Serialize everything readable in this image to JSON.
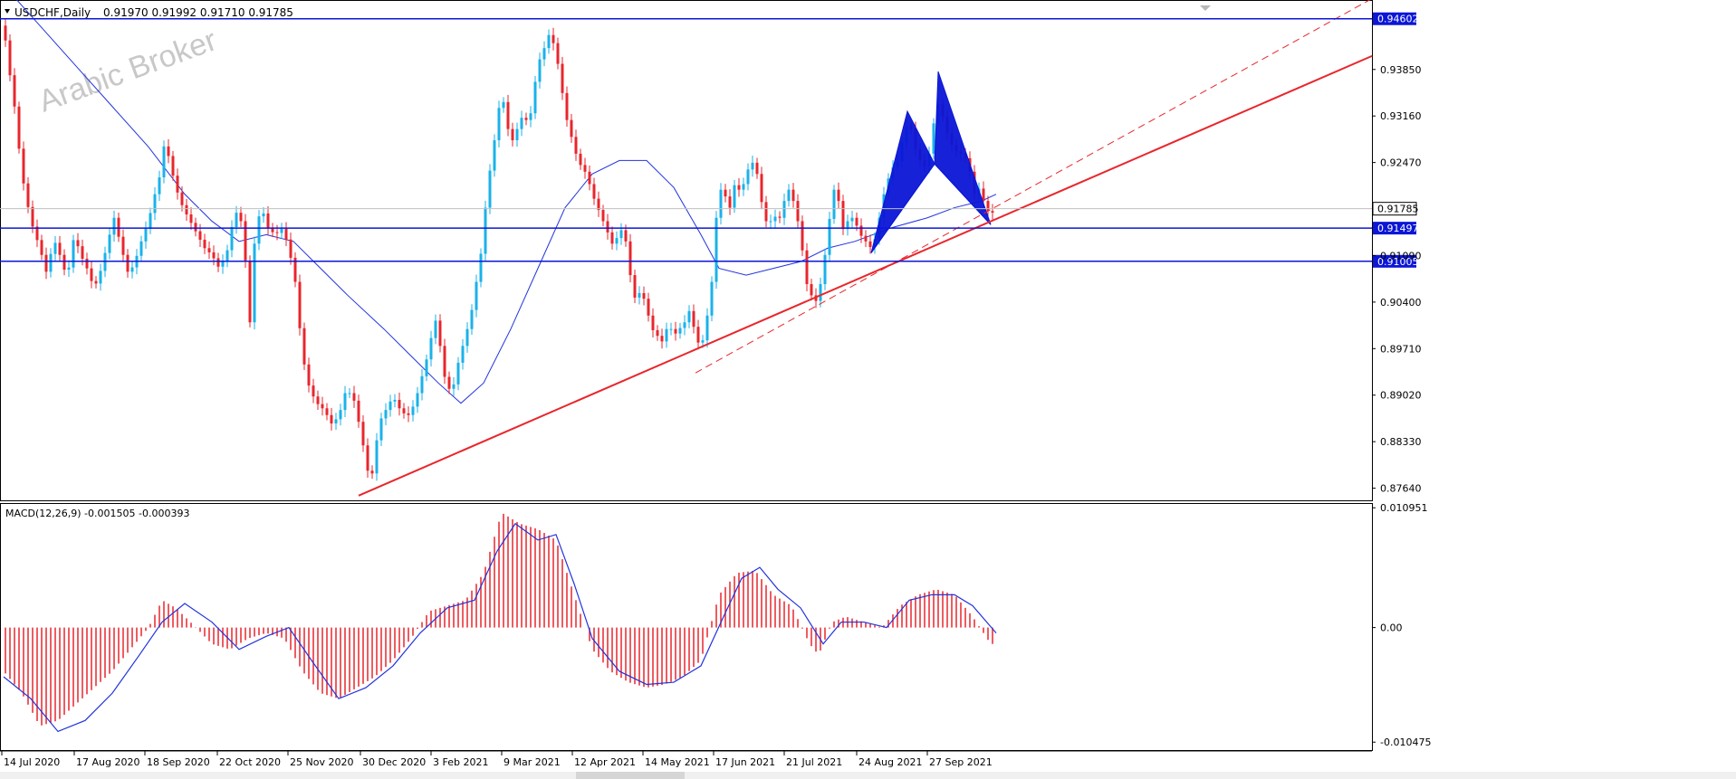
{
  "header": {
    "symbol": "USDCHF,Daily",
    "ohlc": "0.91970 0.91992 0.91710 0.91785"
  },
  "watermark": "Arabic Broker",
  "macd_header": {
    "label": "MACD(12,26,9) -0.001505 -0.000393"
  },
  "colors": {
    "bull": "#1ab2ea",
    "bear": "#e8262c",
    "level_line": "#0b16d6",
    "ma_line": "#2233dd",
    "trend_line": "#e8262c",
    "macd_hist": "#e8262c",
    "macd_signal": "#2233dd",
    "harmonic_fill": "#0b16d6",
    "axis": "#000000",
    "price_tag": "#ffffff"
  },
  "chart_data": [
    {
      "type": "candlestick",
      "pair": "USDCHF",
      "timeframe": "Daily",
      "y_ticks": [
        "0.93850",
        "0.93160",
        "0.92470",
        "0.91090",
        "0.90400",
        "0.89710",
        "0.89020",
        "0.88330",
        "0.87640"
      ],
      "y_range": [
        0.8746,
        0.9488
      ],
      "x_ticks": [
        "14 Jul 2020",
        "17 Aug 2020",
        "18 Sep 2020",
        "22 Oct 2020",
        "25 Nov 2020",
        "30 Dec 2020",
        "3 Feb 2021",
        "9 Mar 2021",
        "12 Apr 2021",
        "14 May 2021",
        "17 Jun 2021",
        "21 Jul 2021",
        "24 Aug 2021",
        "27 Sep 2021"
      ],
      "horizontal_levels": [
        {
          "value": 0.94602,
          "label": "0.94602"
        },
        {
          "value": 0.91497,
          "label": "0.91497"
        },
        {
          "value": 0.91005,
          "label": "0.91005"
        }
      ],
      "last_price": {
        "value": 0.91785,
        "label": "0.91785"
      },
      "price_path": [
        [
          0,
          0.945
        ],
        [
          5,
          0.9395
        ],
        [
          12,
          0.933
        ],
        [
          20,
          0.923
        ],
        [
          30,
          0.916
        ],
        [
          40,
          0.912
        ],
        [
          48,
          0.908
        ],
        [
          55,
          0.9135
        ],
        [
          62,
          0.911
        ],
        [
          70,
          0.9075
        ],
        [
          78,
          0.914
        ],
        [
          85,
          0.911
        ],
        [
          92,
          0.909
        ],
        [
          100,
          0.906
        ],
        [
          108,
          0.909
        ],
        [
          115,
          0.913
        ],
        [
          122,
          0.9165
        ],
        [
          130,
          0.912
        ],
        [
          138,
          0.908
        ],
        [
          145,
          0.91
        ],
        [
          152,
          0.913
        ],
        [
          160,
          0.916
        ],
        [
          165,
          0.919
        ],
        [
          172,
          0.9225
        ],
        [
          178,
          0.928
        ],
        [
          184,
          0.9245
        ],
        [
          190,
          0.921
        ],
        [
          198,
          0.918
        ],
        [
          206,
          0.916
        ],
        [
          214,
          0.914
        ],
        [
          222,
          0.912
        ],
        [
          230,
          0.911
        ],
        [
          238,
          0.909
        ],
        [
          246,
          0.911
        ],
        [
          254,
          0.9165
        ],
        [
          260,
          0.918
        ],
        [
          266,
          0.912
        ],
        [
          272,
          0.901
        ],
        [
          278,
          0.915
        ],
        [
          285,
          0.918
        ],
        [
          292,
          0.915
        ],
        [
          300,
          0.914
        ],
        [
          308,
          0.915
        ],
        [
          315,
          0.912
        ],
        [
          322,
          0.907
        ],
        [
          330,
          0.896
        ],
        [
          338,
          0.891
        ],
        [
          346,
          0.889
        ],
        [
          354,
          0.888
        ],
        [
          362,
          0.886
        ],
        [
          370,
          0.887
        ],
        [
          378,
          0.891
        ],
        [
          386,
          0.89
        ],
        [
          394,
          0.885
        ],
        [
          402,
          0.879
        ],
        [
          408,
          0.8785
        ],
        [
          414,
          0.886
        ],
        [
          422,
          0.888
        ],
        [
          430,
          0.89
        ],
        [
          438,
          0.888
        ],
        [
          446,
          0.887
        ],
        [
          454,
          0.889
        ],
        [
          462,
          0.893
        ],
        [
          470,
          0.897
        ],
        [
          476,
          0.902
        ],
        [
          482,
          0.8975
        ],
        [
          488,
          0.892
        ],
        [
          495,
          0.8905
        ],
        [
          502,
          0.895
        ],
        [
          510,
          0.899
        ],
        [
          516,
          0.902
        ],
        [
          522,
          0.907
        ],
        [
          528,
          0.912
        ],
        [
          534,
          0.921
        ],
        [
          540,
          0.926
        ],
        [
          545,
          0.931
        ],
        [
          550,
          0.9355
        ],
        [
          556,
          0.93
        ],
        [
          562,
          0.928
        ],
        [
          568,
          0.93
        ],
        [
          574,
          0.932
        ],
        [
          580,
          0.93
        ],
        [
          586,
          0.936
        ],
        [
          592,
          0.94
        ],
        [
          598,
          0.942
        ],
        [
          603,
          0.944
        ],
        [
          608,
          0.942
        ],
        [
          614,
          0.938
        ],
        [
          620,
          0.932
        ],
        [
          626,
          0.929
        ],
        [
          632,
          0.926
        ],
        [
          638,
          0.924
        ],
        [
          644,
          0.923
        ],
        [
          650,
          0.92
        ],
        [
          656,
          0.918
        ],
        [
          662,
          0.916
        ],
        [
          668,
          0.914
        ],
        [
          674,
          0.912
        ],
        [
          680,
          0.915
        ],
        [
          686,
          0.914
        ],
        [
          692,
          0.908
        ],
        [
          698,
          0.904
        ],
        [
          704,
          0.906
        ],
        [
          710,
          0.903
        ],
        [
          716,
          0.9
        ],
        [
          722,
          0.899
        ],
        [
          728,
          0.898
        ],
        [
          734,
          0.901
        ],
        [
          740,
          0.899
        ],
        [
          746,
          0.9
        ],
        [
          752,
          0.901
        ],
        [
          758,
          0.903
        ],
        [
          764,
          0.899
        ],
        [
          770,
          0.897
        ],
        [
          776,
          0.901
        ],
        [
          782,
          0.907
        ],
        [
          786,
          0.915
        ],
        [
          790,
          0.921
        ],
        [
          796,
          0.92
        ],
        [
          802,
          0.918
        ],
        [
          808,
          0.922
        ],
        [
          814,
          0.92
        ],
        [
          820,
          0.923
        ],
        [
          826,
          0.925
        ],
        [
          832,
          0.923
        ],
        [
          838,
          0.918
        ],
        [
          844,
          0.915
        ],
        [
          850,
          0.917
        ],
        [
          856,
          0.916
        ],
        [
          862,
          0.919
        ],
        [
          868,
          0.921
        ],
        [
          874,
          0.918
        ],
        [
          880,
          0.914
        ],
        [
          886,
          0.907
        ],
        [
          892,
          0.905
        ],
        [
          898,
          0.904
        ],
        [
          904,
          0.908
        ],
        [
          910,
          0.914
        ],
        [
          916,
          0.921
        ],
        [
          922,
          0.919
        ],
        [
          928,
          0.914
        ],
        [
          934,
          0.917
        ],
        [
          940,
          0.916
        ],
        [
          946,
          0.914
        ],
        [
          952,
          0.913
        ],
        [
          958,
          0.912
        ],
        [
          964,
          0.914
        ],
        [
          970,
          0.919
        ],
        [
          976,
          0.922
        ],
        [
          982,
          0.924
        ],
        [
          988,
          0.925
        ],
        [
          994,
          0.929
        ],
        [
          1000,
          0.931
        ],
        [
          1006,
          0.927
        ],
        [
          1012,
          0.925
        ],
        [
          1018,
          0.924
        ],
        [
          1024,
          0.927
        ],
        [
          1030,
          0.934
        ],
        [
          1036,
          0.932
        ],
        [
          1042,
          0.929
        ],
        [
          1048,
          0.927
        ],
        [
          1054,
          0.926
        ],
        [
          1060,
          0.926
        ],
        [
          1066,
          0.924
        ],
        [
          1072,
          0.92
        ],
        [
          1078,
          0.921
        ],
        [
          1084,
          0.918
        ],
        [
          1090,
          0.917
        ],
        [
          1096,
          0.9178
        ]
      ],
      "moving_average": [
        [
          0,
          0.951
        ],
        [
          40,
          0.945
        ],
        [
          80,
          0.939
        ],
        [
          120,
          0.933
        ],
        [
          160,
          0.927
        ],
        [
          200,
          0.92
        ],
        [
          230,
          0.916
        ],
        [
          260,
          0.913
        ],
        [
          290,
          0.914
        ],
        [
          320,
          0.913
        ],
        [
          350,
          0.909
        ],
        [
          380,
          0.905
        ],
        [
          420,
          0.9
        ],
        [
          450,
          0.896
        ],
        [
          480,
          0.892
        ],
        [
          505,
          0.889
        ],
        [
          530,
          0.892
        ],
        [
          560,
          0.9
        ],
        [
          590,
          0.909
        ],
        [
          620,
          0.918
        ],
        [
          650,
          0.923
        ],
        [
          680,
          0.925
        ],
        [
          710,
          0.925
        ],
        [
          740,
          0.921
        ],
        [
          770,
          0.914
        ],
        [
          790,
          0.909
        ],
        [
          820,
          0.908
        ],
        [
          850,
          0.909
        ],
        [
          880,
          0.91
        ],
        [
          910,
          0.912
        ],
        [
          940,
          0.913
        ],
        [
          980,
          0.915
        ],
        [
          1020,
          0.9165
        ],
        [
          1050,
          0.918
        ],
        [
          1080,
          0.919
        ],
        [
          1096,
          0.92
        ]
      ],
      "trend_lines": [
        {
          "style": "solid",
          "from": [
            396,
            0.8753
          ],
          "to": [
            1515,
            0.9405
          ]
        },
        {
          "style": "dashed",
          "from": [
            768,
            0.8935
          ],
          "to": [
            1515,
            0.949
          ]
        }
      ],
      "harmonic_pattern": {
        "X": [
          958,
          0.9113
        ],
        "A": [
          998,
          0.9323
        ],
        "B": [
          1028,
          0.9245
        ],
        "C": [
          1032,
          0.9382
        ],
        "D": [
          1090,
          0.9155
        ]
      }
    },
    {
      "type": "bar",
      "indicator": "MACD(12,26,9)",
      "main": -0.001505,
      "signal": -0.000393,
      "y_ticks": [
        "0.010951",
        "0.00",
        "-0.010475"
      ],
      "y_range": [
        -0.0112,
        0.0113
      ],
      "histogram": [
        [
          0,
          -0.004
        ],
        [
          20,
          -0.006
        ],
        [
          40,
          -0.009
        ],
        [
          60,
          -0.0085
        ],
        [
          80,
          -0.007
        ],
        [
          100,
          -0.0055
        ],
        [
          120,
          -0.004
        ],
        [
          140,
          -0.002
        ],
        [
          160,
          0.0
        ],
        [
          175,
          0.0025
        ],
        [
          190,
          0.0018
        ],
        [
          210,
          0.0002
        ],
        [
          230,
          -0.0015
        ],
        [
          250,
          -0.002
        ],
        [
          270,
          -0.001
        ],
        [
          290,
          -0.0005
        ],
        [
          310,
          -0.001
        ],
        [
          330,
          -0.004
        ],
        [
          350,
          -0.006
        ],
        [
          370,
          -0.0065
        ],
        [
          390,
          -0.0055
        ],
        [
          410,
          -0.0045
        ],
        [
          430,
          -0.003
        ],
        [
          450,
          -0.001
        ],
        [
          470,
          0.0015
        ],
        [
          490,
          0.002
        ],
        [
          510,
          0.0025
        ],
        [
          530,
          0.005
        ],
        [
          550,
          0.0105
        ],
        [
          570,
          0.0095
        ],
        [
          590,
          0.009
        ],
        [
          610,
          0.008
        ],
        [
          630,
          0.003
        ],
        [
          650,
          -0.002
        ],
        [
          670,
          -0.004
        ],
        [
          690,
          -0.005
        ],
        [
          710,
          -0.0055
        ],
        [
          730,
          -0.0052
        ],
        [
          750,
          -0.0045
        ],
        [
          770,
          -0.003
        ],
        [
          790,
          0.003
        ],
        [
          810,
          0.005
        ],
        [
          830,
          0.0052
        ],
        [
          850,
          0.003
        ],
        [
          870,
          0.002
        ],
        [
          890,
          -0.0015
        ],
        [
          900,
          -0.0025
        ],
        [
          915,
          0.0005
        ],
        [
          930,
          0.001
        ],
        [
          950,
          0.0005
        ],
        [
          970,
          0.0
        ],
        [
          990,
          0.002
        ],
        [
          1010,
          0.003
        ],
        [
          1030,
          0.0035
        ],
        [
          1050,
          0.003
        ],
        [
          1070,
          0.001
        ],
        [
          1090,
          -0.0015
        ]
      ],
      "signal_line": [
        [
          0,
          -0.0045
        ],
        [
          30,
          -0.0065
        ],
        [
          60,
          -0.0095
        ],
        [
          90,
          -0.0085
        ],
        [
          120,
          -0.006
        ],
        [
          150,
          -0.0025
        ],
        [
          175,
          0.0005
        ],
        [
          200,
          0.0022
        ],
        [
          230,
          0.0005
        ],
        [
          260,
          -0.002
        ],
        [
          290,
          -0.0008
        ],
        [
          315,
          0.0
        ],
        [
          340,
          -0.003
        ],
        [
          370,
          -0.0065
        ],
        [
          400,
          -0.0055
        ],
        [
          430,
          -0.0035
        ],
        [
          460,
          -0.0005
        ],
        [
          490,
          0.0018
        ],
        [
          520,
          0.0025
        ],
        [
          545,
          0.007
        ],
        [
          565,
          0.0095
        ],
        [
          590,
          0.008
        ],
        [
          610,
          0.0085
        ],
        [
          630,
          0.004
        ],
        [
          650,
          -0.001
        ],
        [
          680,
          -0.004
        ],
        [
          710,
          -0.0052
        ],
        [
          740,
          -0.005
        ],
        [
          770,
          -0.0035
        ],
        [
          795,
          0.001
        ],
        [
          815,
          0.0045
        ],
        [
          835,
          0.0055
        ],
        [
          855,
          0.0035
        ],
        [
          880,
          0.0018
        ],
        [
          905,
          -0.0015
        ],
        [
          925,
          0.0005
        ],
        [
          950,
          0.0005
        ],
        [
          975,
          0.0
        ],
        [
          1000,
          0.0025
        ],
        [
          1025,
          0.003
        ],
        [
          1050,
          0.003
        ],
        [
          1070,
          0.002
        ],
        [
          1096,
          -0.0005
        ]
      ]
    }
  ]
}
